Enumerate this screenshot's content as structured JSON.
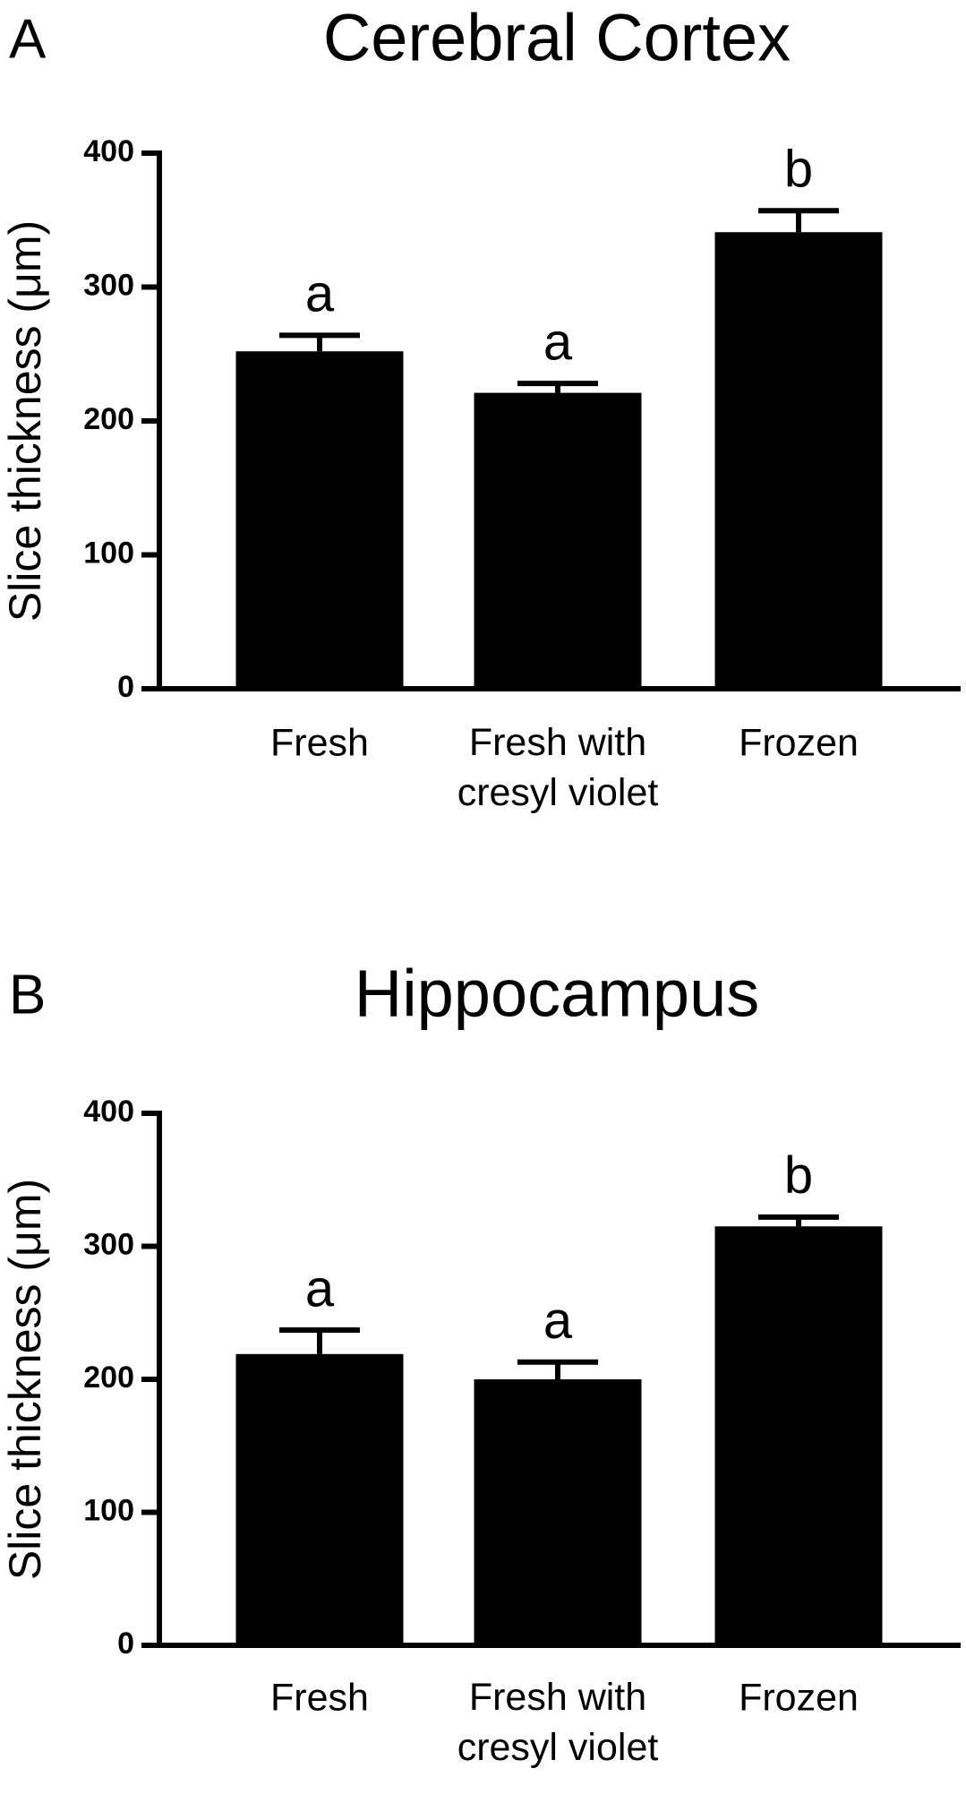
{
  "chart_data": [
    {
      "type": "bar",
      "panel": "A",
      "title": "Cerebral Cortex",
      "ylabel": "Slice thickness (μm)",
      "categories": [
        "Fresh",
        "Fresh with\ncresyl violet",
        "Frozen"
      ],
      "values": [
        252,
        221,
        341
      ],
      "errors": [
        12,
        7,
        16
      ],
      "letters": [
        "a",
        "a",
        "b"
      ],
      "color": "#000000",
      "ylim": [
        0,
        400
      ],
      "yticks": [
        0,
        100,
        200,
        300,
        400
      ]
    },
    {
      "type": "bar",
      "panel": "B",
      "title": "Hippocampus",
      "ylabel": "Slice thickness (μm)",
      "categories": [
        "Fresh",
        "Fresh with\ncresyl violet",
        "Frozen"
      ],
      "values": [
        219,
        200,
        315
      ],
      "errors": [
        18,
        13,
        7
      ],
      "letters": [
        "a",
        "a",
        "b"
      ],
      "color": "#000000",
      "ylim": [
        0,
        400
      ],
      "yticks": [
        0,
        100,
        200,
        300,
        400
      ]
    }
  ]
}
